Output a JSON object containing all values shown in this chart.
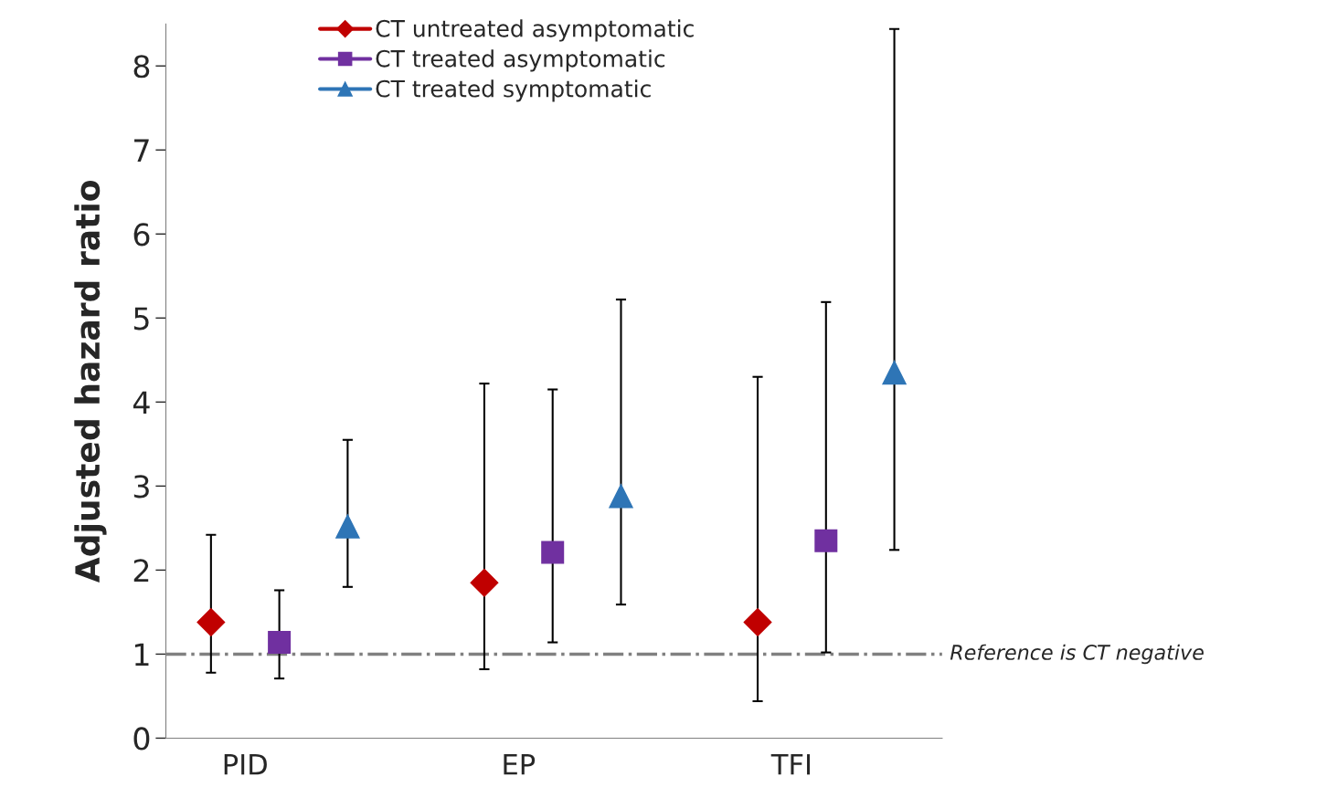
{
  "chart_data": {
    "type": "scatter",
    "ylabel": "Adjusted hazard ratio",
    "categories": [
      "PID",
      "EP",
      "TFI"
    ],
    "series": [
      {
        "name": "CT untreated asymptomatic",
        "color": "#c00000",
        "marker": "diamond",
        "values": [
          1.38,
          1.85,
          1.38
        ],
        "errors": [
          [
            0.78,
            2.42
          ],
          [
            0.82,
            4.22
          ],
          [
            0.44,
            4.3
          ]
        ]
      },
      {
        "name": "CT treated asymptomatic",
        "color": "#7030a0",
        "marker": "square",
        "values": [
          1.14,
          2.21,
          2.35
        ],
        "errors": [
          [
            0.71,
            1.76
          ],
          [
            1.14,
            4.15
          ],
          [
            1.02,
            5.19
          ]
        ]
      },
      {
        "name": "CT treated symptomatic",
        "color": "#2e75b6",
        "marker": "triangle",
        "values": [
          2.52,
          2.88,
          4.35
        ],
        "errors": [
          [
            1.8,
            3.55
          ],
          [
            1.59,
            5.22
          ],
          [
            2.24,
            8.44
          ]
        ]
      }
    ],
    "ylim": [
      0,
      8.5
    ],
    "yticks": [
      0,
      1,
      2,
      3,
      4,
      5,
      6,
      7,
      8
    ],
    "ref_lines": [
      {
        "axis": "y",
        "value": 1,
        "label": "Reference is CT negative",
        "color": "#808080",
        "line_style": "dashdot"
      }
    ],
    "grid": false,
    "legend": "top"
  }
}
